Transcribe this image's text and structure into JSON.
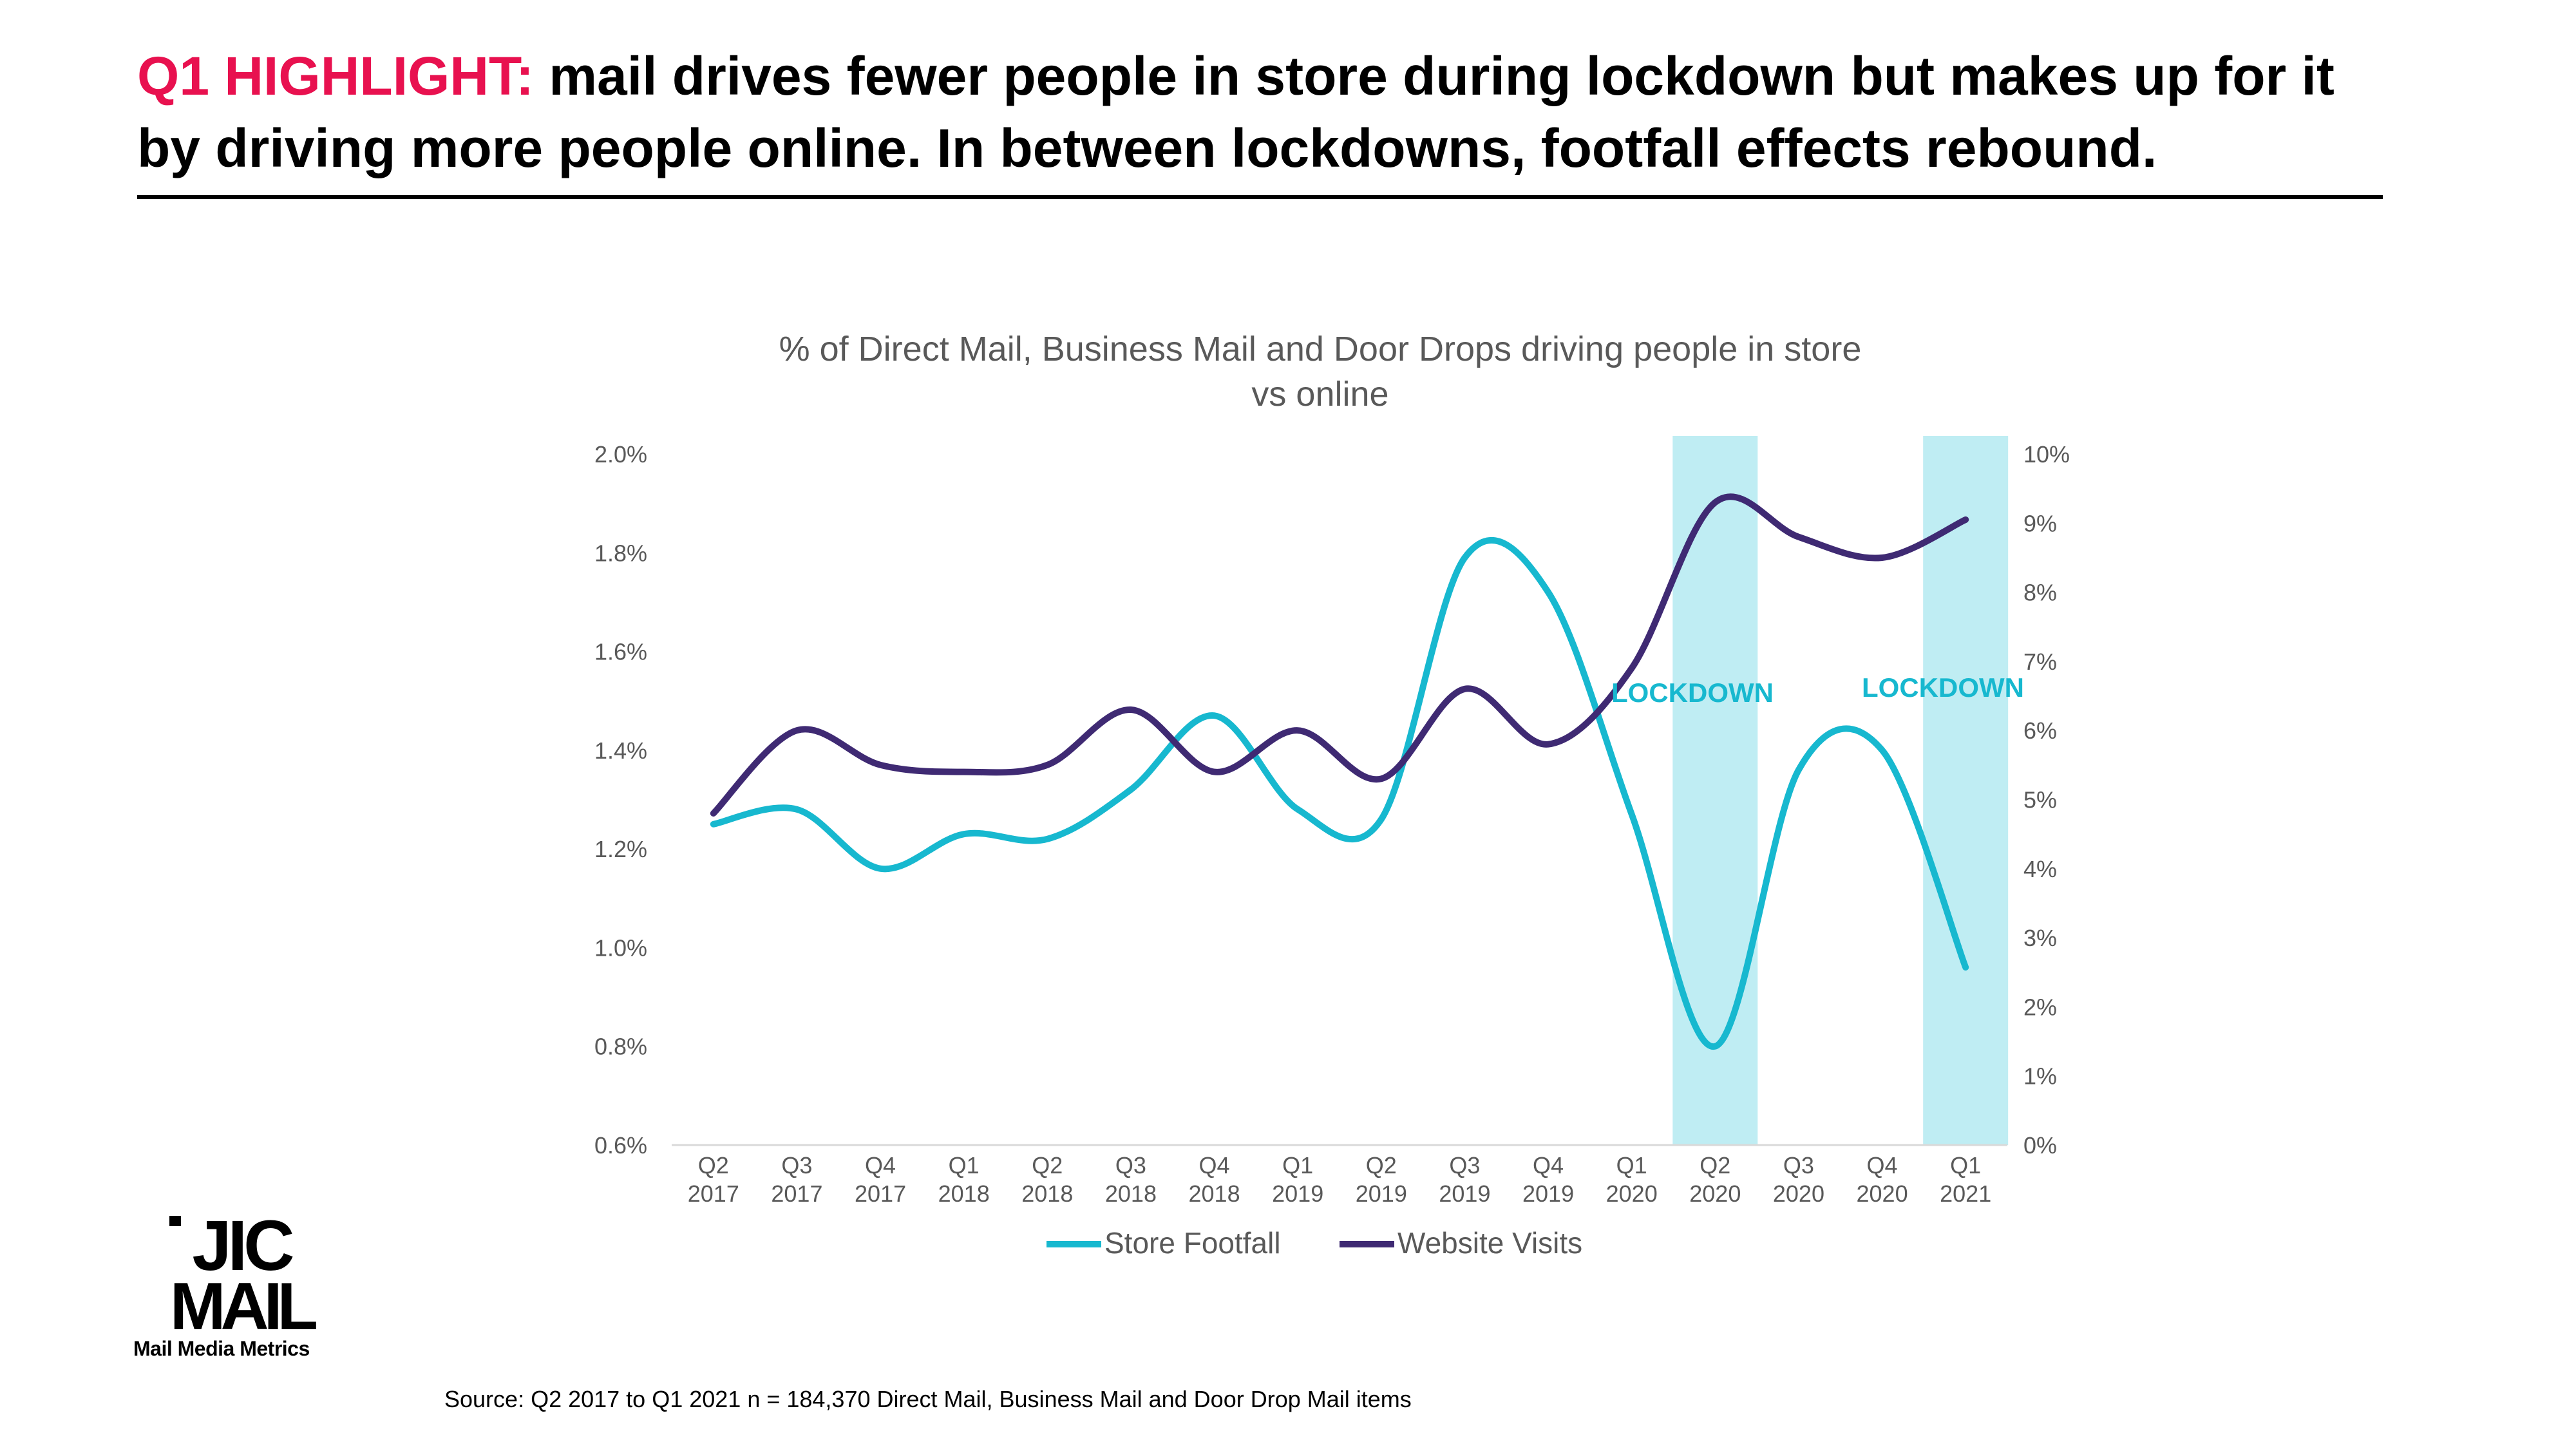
{
  "slide": {
    "headline_accent": "Q1 HIGHLIGHT:",
    "headline_text": " mail drives fewer people in store during lockdown  but makes up for it by driving more people online. In between lockdowns, footfall effects rebound.",
    "source_note": "Source: Q2 2017 to Q1 2021 n = 184,370 Direct Mail, Business Mail and Door Drop Mail items",
    "logo_text_line1": "JIC",
    "logo_text_line2": "MAIL",
    "logo_tagline": "Mail Media Metrics",
    "accent_color": "#e8114f"
  },
  "chart_data": {
    "type": "line",
    "title_lines": [
      "% of Direct Mail, Business Mail and Door Drops driving people in store",
      "vs online"
    ],
    "categories": [
      [
        "Q2",
        "2017"
      ],
      [
        "Q3",
        "2017"
      ],
      [
        "Q4",
        "2017"
      ],
      [
        "Q1",
        "2018"
      ],
      [
        "Q2",
        "2018"
      ],
      [
        "Q3",
        "2018"
      ],
      [
        "Q4",
        "2018"
      ],
      [
        "Q1",
        "2019"
      ],
      [
        "Q2",
        "2019"
      ],
      [
        "Q3",
        "2019"
      ],
      [
        "Q4",
        "2019"
      ],
      [
        "Q1",
        "2020"
      ],
      [
        "Q2",
        "2020"
      ],
      [
        "Q3",
        "2020"
      ],
      [
        "Q4",
        "2020"
      ],
      [
        "Q1",
        "2021"
      ]
    ],
    "y_left": {
      "min": 0.6,
      "max": 2.0,
      "ticks": [
        0.6,
        0.8,
        1.0,
        1.2,
        1.4,
        1.6,
        1.8,
        2.0
      ],
      "tick_labels": [
        "0.6%",
        "0.8%",
        "1.0%",
        "1.2%",
        "1.4%",
        "1.6%",
        "1.8%",
        "2.0%"
      ]
    },
    "y_right": {
      "min": 0,
      "max": 10,
      "ticks": [
        0,
        1,
        2,
        3,
        4,
        5,
        6,
        7,
        8,
        9,
        10
      ],
      "tick_labels": [
        "0%",
        "1%",
        "2%",
        "3%",
        "4%",
        "5%",
        "6%",
        "7%",
        "8%",
        "9%",
        "10%"
      ]
    },
    "series": [
      {
        "name": "Store Footfall",
        "axis": "left",
        "color": "#17b8cf",
        "values": [
          1.25,
          1.28,
          1.16,
          1.23,
          1.22,
          1.32,
          1.47,
          1.28,
          1.26,
          1.79,
          1.72,
          1.27,
          0.8,
          1.36,
          1.4,
          0.96
        ]
      },
      {
        "name": "Website Visits",
        "axis": "right",
        "color": "#3f2a73",
        "values": [
          4.8,
          6.0,
          5.5,
          5.4,
          5.5,
          6.3,
          5.4,
          6.0,
          5.3,
          6.6,
          5.8,
          6.9,
          9.3,
          8.8,
          8.5,
          9.05
        ]
      }
    ],
    "lockdown_label": "LOCKDOWN",
    "lockdown_periods": [
      12,
      15
    ],
    "lockdown_color": "#bfedf3",
    "lockdown_text_color": "#17b8cf",
    "grid": false,
    "legend_position": "bottom"
  }
}
